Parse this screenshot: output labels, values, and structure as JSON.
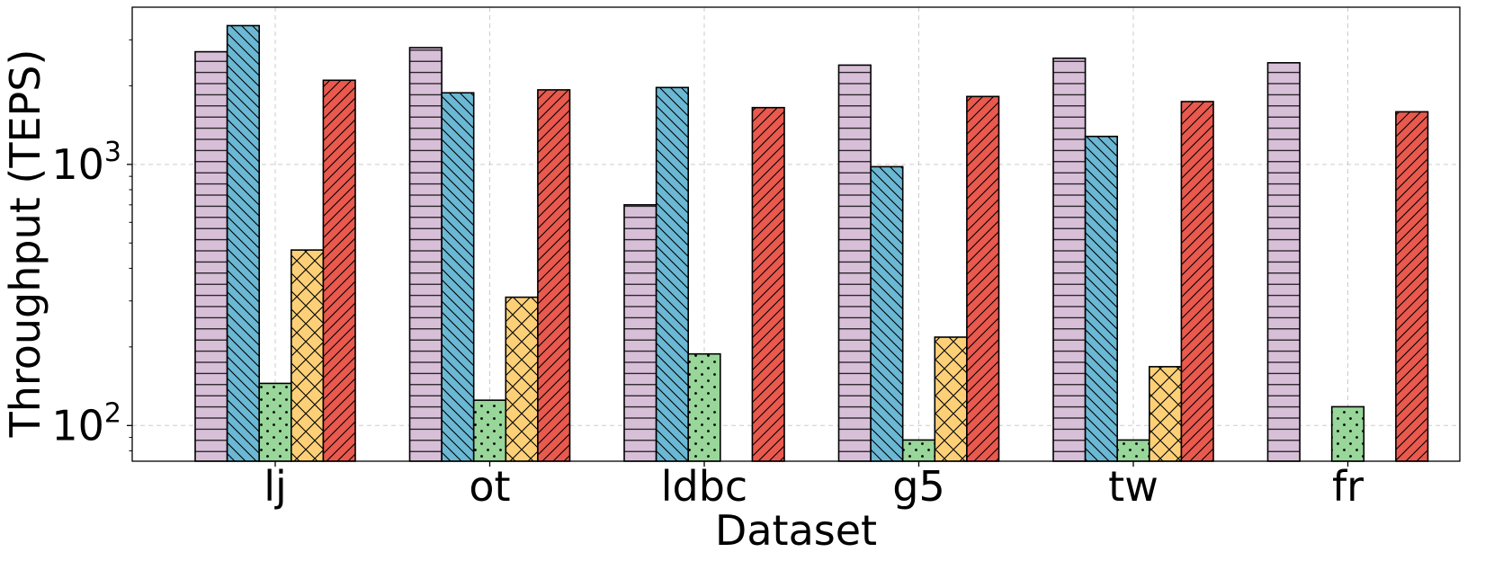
{
  "chart_data": {
    "type": "bar",
    "title": "",
    "xlabel": "Dataset",
    "ylabel": "Throughput (TEPS)",
    "yscale": "log",
    "ylim": [
      73,
      4000
    ],
    "grid": true,
    "legend": "none",
    "categories": [
      "lj",
      "ot",
      "ldbc",
      "g5",
      "tw",
      "fr"
    ],
    "yticks": [
      {
        "base": "10",
        "exp": "2"
      },
      {
        "base": "10",
        "exp": "3"
      }
    ],
    "series": [
      {
        "color": "#d8bfd8",
        "hatch": "horizontal",
        "values": [
          2700,
          2800,
          700,
          2400,
          2550,
          2450
        ]
      },
      {
        "color": "#6bb8d4",
        "hatch": "backslash",
        "values": [
          3400,
          1880,
          1970,
          980,
          1280,
          null
        ]
      },
      {
        "color": "#98d69a",
        "hatch": "dots",
        "values": [
          145,
          125,
          188,
          88,
          88,
          118
        ]
      },
      {
        "color": "#fdd078",
        "hatch": "cross",
        "values": [
          470,
          310,
          null,
          218,
          168,
          null
        ]
      },
      {
        "color": "#e9594e",
        "hatch": "forward-slash",
        "values": [
          2100,
          1930,
          1650,
          1820,
          1740,
          1590
        ]
      }
    ]
  }
}
